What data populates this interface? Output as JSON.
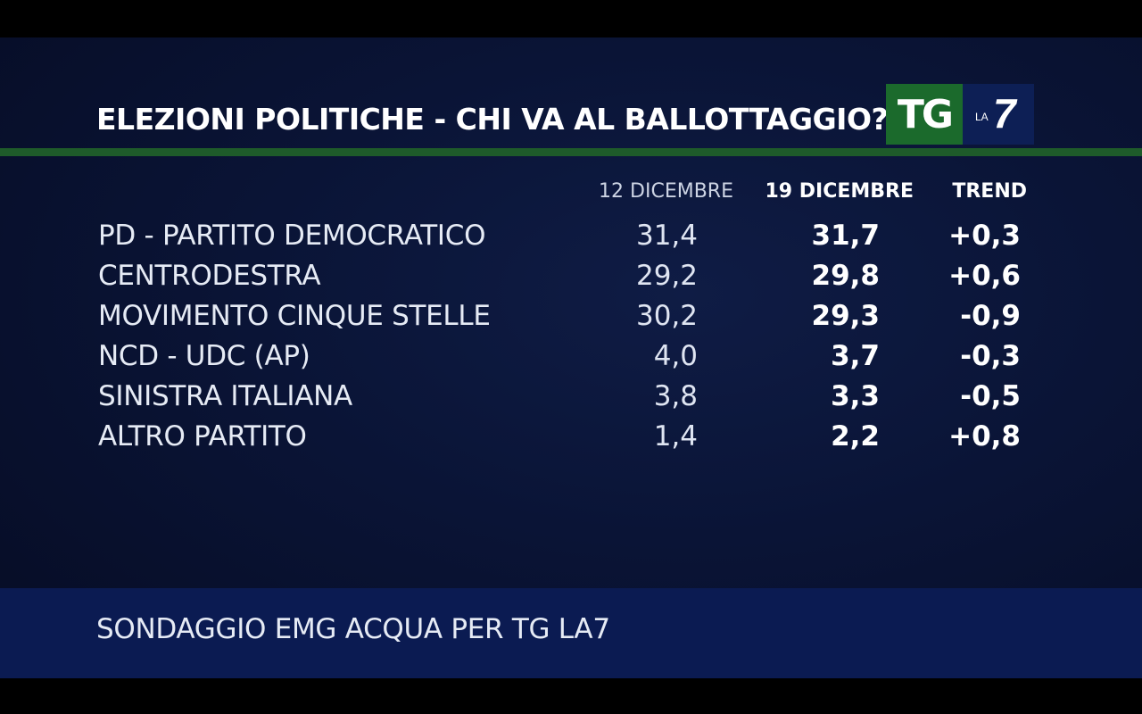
{
  "title": "ELEZIONI POLITICHE - CHI VA AL BALLOTTAGGIO?",
  "logo": {
    "tg": "TG",
    "la": "LA",
    "seven": "7"
  },
  "chart_data": {
    "type": "table",
    "columns": [
      "12 DICEMBRE",
      "19 DICEMBRE",
      "TREND"
    ],
    "rows": [
      {
        "name": "PD - PARTITO DEMOCRATICO",
        "dec12": "31,4",
        "dec19": "31,7",
        "trend": "+0,3"
      },
      {
        "name": "CENTRODESTRA",
        "dec12": "29,2",
        "dec19": "29,8",
        "trend": "+0,6"
      },
      {
        "name": "MOVIMENTO CINQUE STELLE",
        "dec12": "30,2",
        "dec19": "29,3",
        "trend": "-0,9"
      },
      {
        "name": "NCD - UDC (AP)",
        "dec12": "4,0",
        "dec19": "3,7",
        "trend": "-0,3"
      },
      {
        "name": "SINISTRA ITALIANA",
        "dec12": "3,8",
        "dec19": "3,3",
        "trend": "-0,5"
      },
      {
        "name": "ALTRO PARTITO",
        "dec12": "1,4",
        "dec19": "2,2",
        "trend": "+0,8"
      }
    ]
  },
  "footer": "SONDAGGIO EMG ACQUA PER TG LA7",
  "colors": {
    "background": "#0a1436",
    "green_band": "#1e5b2a",
    "logo_green": "#1b6a2c",
    "footer_band": "#0b1b52"
  }
}
